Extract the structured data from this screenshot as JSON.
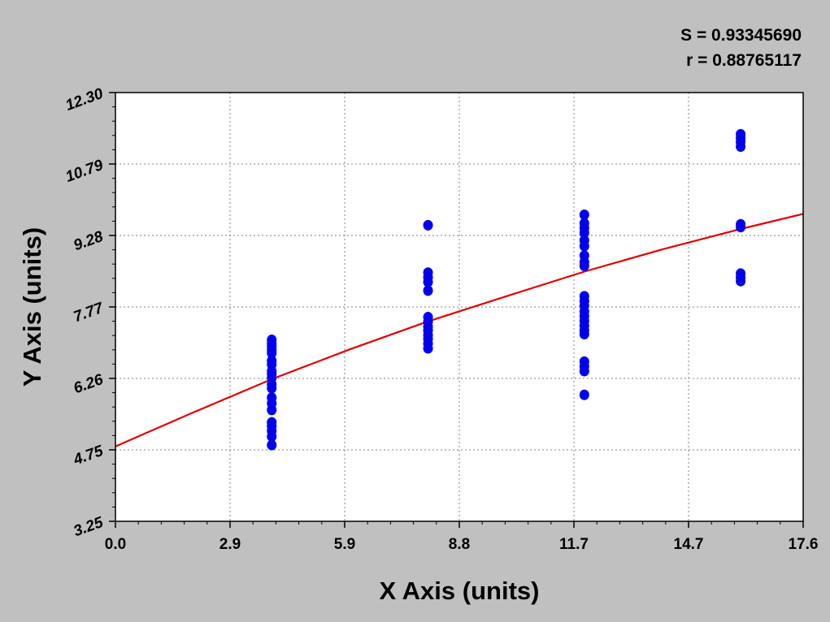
{
  "stats": {
    "s_label": "S = 0.93345690",
    "r_label": "r = 0.88765117"
  },
  "chart_data": {
    "type": "scatter",
    "xlabel": "X Axis (units)",
    "ylabel": "Y Axis (units)",
    "xlim": [
      0.0,
      17.6
    ],
    "ylim": [
      3.25,
      12.3
    ],
    "x_ticks": [
      "0.0",
      "2.9",
      "5.9",
      "8.8",
      "11.7",
      "14.7",
      "17.6"
    ],
    "y_ticks": [
      "3.25",
      "4.75",
      "6.26",
      "7.77",
      "9.28",
      "10.79",
      "12.30"
    ],
    "grid": true,
    "plot_background": "#ffffff",
    "page_background": "#c0c0c0",
    "series": [
      {
        "marker_color": "#0000ee",
        "points": [
          [
            4.0,
            7.08
          ],
          [
            4.0,
            7.0
          ],
          [
            4.0,
            6.94
          ],
          [
            4.0,
            6.86
          ],
          [
            4.0,
            6.8
          ],
          [
            4.0,
            6.64
          ],
          [
            4.0,
            6.56
          ],
          [
            4.0,
            6.42
          ],
          [
            4.0,
            6.36
          ],
          [
            4.0,
            6.28
          ],
          [
            4.0,
            6.14
          ],
          [
            4.0,
            6.06
          ],
          [
            4.0,
            5.86
          ],
          [
            4.0,
            5.74
          ],
          [
            4.0,
            5.6
          ],
          [
            4.0,
            5.34
          ],
          [
            4.0,
            5.26
          ],
          [
            4.0,
            5.16
          ],
          [
            4.0,
            5.04
          ],
          [
            4.0,
            4.86
          ],
          [
            8.0,
            9.5
          ],
          [
            8.0,
            8.5
          ],
          [
            8.0,
            8.4
          ],
          [
            8.0,
            8.3
          ],
          [
            8.0,
            8.12
          ],
          [
            8.0,
            7.56
          ],
          [
            8.0,
            7.46
          ],
          [
            8.0,
            7.36
          ],
          [
            8.0,
            7.28
          ],
          [
            8.0,
            7.18
          ],
          [
            8.0,
            7.1
          ],
          [
            8.0,
            7.0
          ],
          [
            8.0,
            6.9
          ],
          [
            12.0,
            9.72
          ],
          [
            12.0,
            9.54
          ],
          [
            12.0,
            9.44
          ],
          [
            12.0,
            9.34
          ],
          [
            12.0,
            9.18
          ],
          [
            12.0,
            9.06
          ],
          [
            12.0,
            8.86
          ],
          [
            12.0,
            8.72
          ],
          [
            12.0,
            8.64
          ],
          [
            12.0,
            8.0
          ],
          [
            12.0,
            7.9
          ],
          [
            12.0,
            7.8
          ],
          [
            12.0,
            7.68
          ],
          [
            12.0,
            7.58
          ],
          [
            12.0,
            7.48
          ],
          [
            12.0,
            7.38
          ],
          [
            12.0,
            7.28
          ],
          [
            12.0,
            7.2
          ],
          [
            12.0,
            6.62
          ],
          [
            12.0,
            6.52
          ],
          [
            12.0,
            6.42
          ],
          [
            12.0,
            5.92
          ],
          [
            16.0,
            11.42
          ],
          [
            16.0,
            11.34
          ],
          [
            16.0,
            11.26
          ],
          [
            16.0,
            11.16
          ],
          [
            16.0,
            9.52
          ],
          [
            16.0,
            9.46
          ],
          [
            16.0,
            8.48
          ],
          [
            16.0,
            8.4
          ],
          [
            16.0,
            8.32
          ]
        ]
      },
      {
        "line_color": "#e00000",
        "fit_curve": [
          [
            0.0,
            4.83
          ],
          [
            2.0,
            5.55
          ],
          [
            4.0,
            6.25
          ],
          [
            6.0,
            6.88
          ],
          [
            8.0,
            7.47
          ],
          [
            10.0,
            8.0
          ],
          [
            12.0,
            8.52
          ],
          [
            14.0,
            8.99
          ],
          [
            16.0,
            9.42
          ],
          [
            17.6,
            9.74
          ]
        ]
      }
    ]
  }
}
